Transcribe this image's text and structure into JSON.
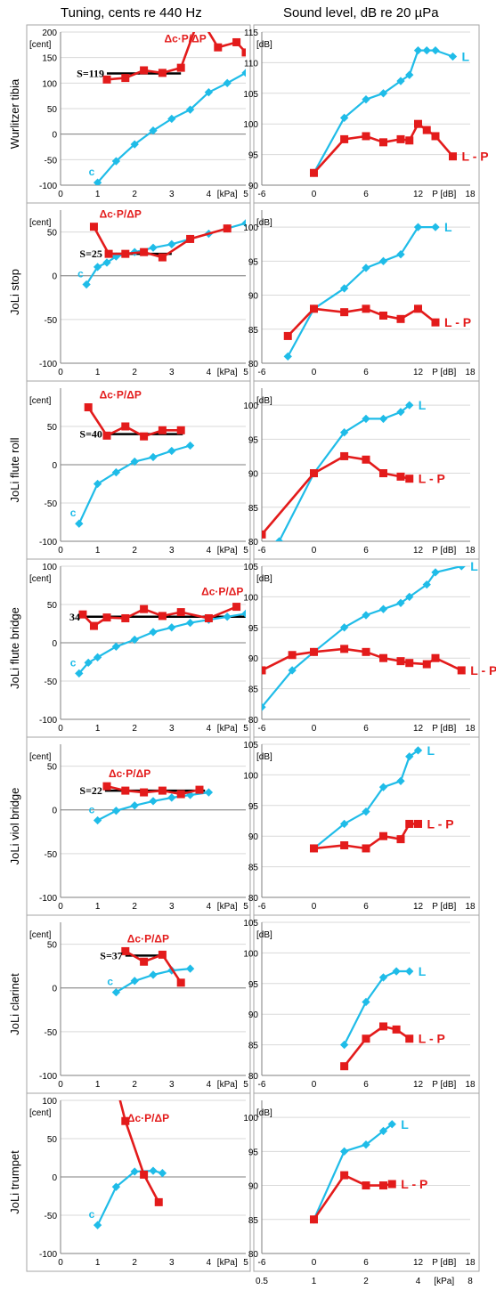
{
  "header": {
    "left": "Tuning, cents re 440 Hz",
    "right": "Sound level, dB re 20 µPa"
  },
  "axes": {
    "tuning_unit": "[cent]",
    "level_unit": "[dB]",
    "tuning_xticks": [
      "0",
      "1",
      "2",
      "3",
      "4",
      "5"
    ],
    "tuning_xunit": "[kPa]",
    "level_xticks": [
      "-6",
      "0",
      "6",
      "12",
      "18"
    ],
    "level_xunit": "P [dB]",
    "bottom_ticks": [
      "0.5",
      "1",
      "2",
      "4",
      "8"
    ],
    "bottom_unit": "[kPa]"
  },
  "colors": {
    "cyan": "#1FBCE8",
    "red": "#E31B1B",
    "black": "#000000",
    "grid": "#d9d9d9",
    "frame": "#a6a6a6"
  },
  "chart_data": [
    {
      "type": "line",
      "panel": "tuning",
      "row_label": "Wurlitzer tibia",
      "xlim": [
        0,
        5
      ],
      "ylim": [
        -100,
        200
      ],
      "yticks": [
        "-100",
        "-50",
        "0",
        "50",
        "100",
        "150",
        "200"
      ],
      "series": [
        {
          "name": "c",
          "color": "cyan",
          "x": [
            1,
            1.5,
            2,
            2.5,
            3,
            3.5,
            4,
            4.5,
            5
          ],
          "y": [
            -95,
            -53,
            -20,
            7,
            30,
            48,
            82,
            100,
            120
          ]
        },
        {
          "name": "Δc·P/ΔP",
          "color": "red",
          "x": [
            1.25,
            1.75,
            2.25,
            2.75,
            3.25,
            3.75,
            4.25,
            4.75,
            5
          ],
          "y": [
            107,
            110,
            125,
            120,
            130,
            230,
            170,
            180,
            160
          ]
        }
      ],
      "slope_label": "S=119",
      "slope_y": 119,
      "slope_x": [
        1.25,
        3.25
      ]
    },
    {
      "type": "line",
      "panel": "level",
      "row_label": "Wurlitzer tibia",
      "xlim": [
        -6,
        18
      ],
      "ylim": [
        90,
        115
      ],
      "yticks": [
        "90",
        "95",
        "100",
        "105",
        "110",
        "115"
      ],
      "series": [
        {
          "name": "L",
          "color": "cyan",
          "x": [
            0,
            3.5,
            6,
            8,
            10,
            11,
            12,
            13,
            14,
            16
          ],
          "y": [
            92,
            101,
            104,
            105,
            107,
            108,
            112,
            112,
            112,
            111
          ]
        },
        {
          "name": "L - P",
          "color": "red",
          "x": [
            0,
            3.5,
            6,
            8,
            10,
            11,
            12,
            13,
            14,
            16
          ],
          "y": [
            92,
            97.5,
            98,
            97,
            97.5,
            97.3,
            100,
            99,
            98,
            94.7
          ]
        }
      ]
    },
    {
      "type": "line",
      "panel": "tuning",
      "row_label": "JoLi stop",
      "xlim": [
        0,
        5
      ],
      "ylim": [
        -100,
        75
      ],
      "yticks": [
        "-100",
        "-50",
        "0",
        "50"
      ],
      "series": [
        {
          "name": "c",
          "color": "cyan",
          "x": [
            0.7,
            1,
            1.25,
            1.5,
            2,
            2.5,
            3,
            3.5,
            4,
            4.5,
            5
          ],
          "y": [
            -10,
            10,
            15,
            22,
            27,
            32,
            36,
            42,
            48,
            54,
            60
          ]
        },
        {
          "name": "Δc·P/ΔP",
          "color": "red",
          "x": [
            0.9,
            1.3,
            1.75,
            2.25,
            2.75,
            3.5,
            4.5
          ],
          "y": [
            56,
            25,
            25,
            27,
            21,
            42,
            54
          ]
        }
      ],
      "slope_label": "S=25",
      "slope_y": 25,
      "slope_x": [
        1.2,
        3
      ]
    },
    {
      "type": "line",
      "panel": "level",
      "row_label": "JoLi stop",
      "xlim": [
        -6,
        18
      ],
      "ylim": [
        80,
        102.5
      ],
      "yticks": [
        "80",
        "85",
        "90",
        "95",
        "100"
      ],
      "series": [
        {
          "name": "L",
          "color": "cyan",
          "x": [
            -3,
            0,
            3.5,
            6,
            8,
            10,
            12,
            14
          ],
          "y": [
            81,
            88,
            91,
            94,
            95,
            96,
            100,
            100
          ]
        },
        {
          "name": "L - P",
          "color": "red",
          "x": [
            -3,
            0,
            3.5,
            6,
            8,
            10,
            12,
            14
          ],
          "y": [
            84,
            88,
            87.5,
            88,
            87,
            86.5,
            88,
            86
          ]
        }
      ]
    },
    {
      "type": "line",
      "panel": "tuning",
      "row_label": "JoLi flute roll",
      "xlim": [
        0,
        5
      ],
      "ylim": [
        -100,
        100
      ],
      "yticks": [
        "-100",
        "-50",
        "0",
        "50"
      ],
      "series": [
        {
          "name": "c",
          "color": "cyan",
          "x": [
            0.5,
            1,
            1.5,
            2,
            2.5,
            3,
            3.5
          ],
          "y": [
            -77,
            -25,
            -10,
            4,
            10,
            18,
            25
          ]
        },
        {
          "name": "Δc·P/ΔP",
          "color": "red",
          "x": [
            0.75,
            1.25,
            1.75,
            2.25,
            2.75,
            3.25
          ],
          "y": [
            75,
            38,
            50,
            37,
            45,
            45
          ]
        }
      ],
      "slope_label": "S=40",
      "slope_y": 40,
      "slope_x": [
        1.2,
        3.3
      ]
    },
    {
      "type": "line",
      "panel": "level",
      "row_label": "JoLi flute roll",
      "xlim": [
        -6,
        18
      ],
      "ylim": [
        80,
        102.5
      ],
      "yticks": [
        "80",
        "85",
        "90",
        "95",
        "100"
      ],
      "series": [
        {
          "name": "L",
          "color": "cyan",
          "x": [
            -4,
            0,
            3.5,
            6,
            8,
            10,
            11
          ],
          "y": [
            80,
            90,
            96,
            98,
            98,
            99,
            100
          ]
        },
        {
          "name": "L - P",
          "color": "red",
          "x": [
            -6,
            0,
            3.5,
            6,
            8,
            10,
            11
          ],
          "y": [
            81,
            90,
            92.5,
            92,
            90,
            89.5,
            89.2
          ]
        }
      ]
    },
    {
      "type": "line",
      "panel": "tuning",
      "row_label": "JoLi flute bridge",
      "xlim": [
        0,
        5
      ],
      "ylim": [
        -100,
        100
      ],
      "yticks": [
        "-100",
        "-50",
        "0",
        "50",
        "100"
      ],
      "series": [
        {
          "name": "c",
          "color": "cyan",
          "x": [
            0.5,
            0.75,
            1,
            1.5,
            2,
            2.5,
            3,
            3.5,
            4,
            4.5,
            5
          ],
          "y": [
            -40,
            -26,
            -19,
            -5,
            4,
            14,
            20,
            26,
            30,
            34,
            38
          ]
        },
        {
          "name": "Δc·P/ΔP",
          "color": "red",
          "x": [
            0.6,
            0.9,
            1.25,
            1.75,
            2.25,
            2.75,
            3.25,
            4,
            4.75
          ],
          "y": [
            37,
            22,
            33,
            32,
            44,
            35,
            40,
            32,
            47
          ]
        }
      ],
      "slope_label": "34",
      "slope_y": 34,
      "slope_x": [
        0.6,
        5
      ]
    },
    {
      "type": "line",
      "panel": "level",
      "row_label": "JoLi flute bridge",
      "xlim": [
        -6,
        18
      ],
      "ylim": [
        80,
        105
      ],
      "yticks": [
        "80",
        "85",
        "90",
        "95",
        "100",
        "105"
      ],
      "series": [
        {
          "name": "L",
          "color": "cyan",
          "x": [
            -6,
            -2.5,
            0,
            3.5,
            6,
            8,
            10,
            11,
            13,
            14,
            17
          ],
          "y": [
            82,
            88,
            91,
            95,
            97,
            98,
            99,
            100,
            102,
            104,
            105
          ]
        },
        {
          "name": "L - P",
          "color": "red",
          "x": [
            -6,
            -2.5,
            0,
            3.5,
            6,
            8,
            10,
            11,
            13,
            14,
            17
          ],
          "y": [
            88,
            90.5,
            91,
            91.5,
            91,
            90,
            89.5,
            89.2,
            89,
            90,
            88
          ]
        }
      ]
    },
    {
      "type": "line",
      "panel": "tuning",
      "row_label": "JoLi viol bridge",
      "xlim": [
        0,
        5
      ],
      "ylim": [
        -100,
        75
      ],
      "yticks": [
        "-100",
        "-50",
        "0",
        "50"
      ],
      "series": [
        {
          "name": "c",
          "color": "cyan",
          "x": [
            1,
            1.5,
            2,
            2.5,
            3,
            3.5,
            4
          ],
          "y": [
            -12,
            -1,
            5,
            10,
            14,
            17,
            20
          ]
        },
        {
          "name": "Δc·P/ΔP",
          "color": "red",
          "x": [
            1.25,
            1.75,
            2.25,
            2.75,
            3.25,
            3.75
          ],
          "y": [
            27,
            22,
            20,
            22,
            18,
            23
          ]
        }
      ],
      "slope_label": "S=22",
      "slope_y": 22,
      "slope_x": [
        1.2,
        3.9
      ]
    },
    {
      "type": "line",
      "panel": "level",
      "row_label": "JoLi viol bridge",
      "xlim": [
        -6,
        18
      ],
      "ylim": [
        80,
        105
      ],
      "yticks": [
        "80",
        "85",
        "90",
        "95",
        "100",
        "105"
      ],
      "series": [
        {
          "name": "L",
          "color": "cyan",
          "x": [
            0,
            3.5,
            6,
            8,
            10,
            11,
            12
          ],
          "y": [
            88,
            92,
            94,
            98,
            99,
            103,
            104
          ]
        },
        {
          "name": "L - P",
          "color": "red",
          "x": [
            0,
            3.5,
            6,
            8,
            10,
            11,
            12
          ],
          "y": [
            88,
            88.5,
            88,
            90,
            89.5,
            92,
            92
          ]
        }
      ]
    },
    {
      "type": "line",
      "panel": "tuning",
      "row_label": "JoLi clarinet",
      "xlim": [
        0,
        5
      ],
      "ylim": [
        -100,
        75
      ],
      "yticks": [
        "-100",
        "-50",
        "0",
        "50"
      ],
      "series": [
        {
          "name": "c",
          "color": "cyan",
          "x": [
            1.5,
            2,
            2.5,
            3,
            3.5
          ],
          "y": [
            -5,
            8,
            15,
            20,
            22
          ]
        },
        {
          "name": "Δc·P/ΔP",
          "color": "red",
          "x": [
            1.75,
            2.25,
            2.75,
            3.25
          ],
          "y": [
            42,
            30,
            38,
            6
          ]
        }
      ],
      "slope_label": "S=37",
      "slope_y": 37,
      "slope_x": [
        1.75,
        2.8
      ]
    },
    {
      "type": "line",
      "panel": "level",
      "row_label": "JoLi clarinet",
      "xlim": [
        -6,
        18
      ],
      "ylim": [
        80,
        105
      ],
      "yticks": [
        "80",
        "85",
        "90",
        "95",
        "100",
        "105"
      ],
      "series": [
        {
          "name": "L",
          "color": "cyan",
          "x": [
            3.5,
            6,
            8,
            9.5,
            11
          ],
          "y": [
            85,
            92,
            96,
            97,
            97
          ]
        },
        {
          "name": "L - P",
          "color": "red",
          "x": [
            3.5,
            6,
            8,
            9.5,
            11
          ],
          "y": [
            81.5,
            86,
            88,
            87.5,
            86
          ]
        }
      ]
    },
    {
      "type": "line",
      "panel": "tuning",
      "row_label": "JoLi trumpet",
      "xlim": [
        0,
        5
      ],
      "ylim": [
        -100,
        100
      ],
      "yticks": [
        "-100",
        "-50",
        "0",
        "50",
        "100"
      ],
      "series": [
        {
          "name": "c",
          "color": "cyan",
          "x": [
            1,
            1.5,
            2,
            2.5,
            2.75
          ],
          "y": [
            -63,
            -13,
            7,
            8,
            5
          ]
        },
        {
          "name": "Δc·P/ΔP",
          "color": "red",
          "x": [
            1.5,
            1.75,
            2.25,
            2.65
          ],
          "y": [
            120,
            73,
            3,
            -33
          ]
        }
      ]
    },
    {
      "type": "line",
      "panel": "level",
      "row_label": "JoLi trumpet",
      "xlim": [
        -6,
        18
      ],
      "ylim": [
        80,
        102.5
      ],
      "yticks": [
        "80",
        "85",
        "90",
        "95",
        "100"
      ],
      "series": [
        {
          "name": "L",
          "color": "cyan",
          "x": [
            0,
            3.5,
            6,
            8,
            9
          ],
          "y": [
            85,
            95,
            96,
            98,
            99
          ]
        },
        {
          "name": "L - P",
          "color": "red",
          "x": [
            0,
            3.5,
            6,
            8,
            9
          ],
          "y": [
            85,
            91.5,
            90,
            90,
            90.2
          ]
        }
      ]
    }
  ]
}
